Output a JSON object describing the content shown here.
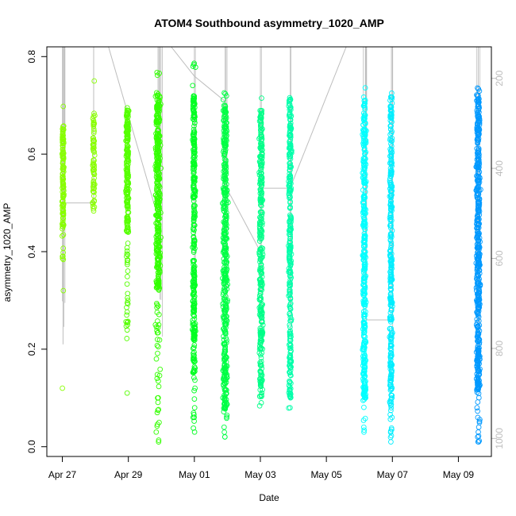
{
  "chart_data": {
    "type": "scatter",
    "title": "ATOM4 Southbound asymmetry_1020_AMP",
    "xlabel": "Date",
    "ylabel": "asymmetry_1020_AMP",
    "x_ticks": [
      "Apr 27",
      "Apr 29",
      "May 01",
      "May 03",
      "May 05",
      "May 07",
      "May 09"
    ],
    "x_tick_days": [
      0,
      2,
      4,
      6,
      8,
      10,
      12
    ],
    "xlim_days": [
      -0.47,
      13.0
    ],
    "y_ticks": [
      "0.0",
      "0.2",
      "0.4",
      "0.6",
      "0.8"
    ],
    "ylim": [
      -0.02,
      0.82
    ],
    "right_axis": {
      "ticks": [
        "200",
        "400",
        "600",
        "800",
        "1000"
      ],
      "ylim": [
        1040,
        130
      ],
      "color": "#bdbdbd"
    },
    "grid": false,
    "marker": "open-circle",
    "series": [
      {
        "day": 0.02,
        "spread": 0.04,
        "min": 0.38,
        "max": 0.71,
        "core_min": 0.45,
        "core_max": 0.66,
        "n": 140,
        "color": "#88ff00",
        "outliers": [
          0.12,
          0.32,
          0.39
        ]
      },
      {
        "day": 0.95,
        "spread": 0.05,
        "min": 0.48,
        "max": 0.7,
        "core_min": 0.49,
        "core_max": 0.68,
        "n": 70,
        "color": "#88ff00",
        "outliers": [
          0.75
        ]
      },
      {
        "day": 1.97,
        "spread": 0.06,
        "min": 0.22,
        "max": 0.7,
        "core_min": 0.44,
        "core_max": 0.69,
        "n": 230,
        "color": "#55ff00",
        "outliers": [
          0.11,
          0.25,
          0.27,
          0.3
        ]
      },
      {
        "day": 2.9,
        "spread": 0.11,
        "min": 0.01,
        "max": 0.77,
        "core_min": 0.32,
        "core_max": 0.72,
        "n": 380,
        "color": "#33ff00",
        "outliers": [
          0.01,
          0.03,
          0.07,
          0.1,
          0.14,
          0.18,
          0.22,
          0.25
        ]
      },
      {
        "day": 3.99,
        "spread": 0.06,
        "min": 0.03,
        "max": 0.79,
        "core_min": 0.15,
        "core_max": 0.72,
        "n": 330,
        "color": "#00ff22",
        "outliers": [
          0.03,
          0.06,
          0.08,
          0.12
        ]
      },
      {
        "day": 4.93,
        "spread": 0.11,
        "min": 0.02,
        "max": 0.73,
        "core_min": 0.07,
        "core_max": 0.7,
        "n": 420,
        "color": "#00ff44",
        "outliers": [
          0.02,
          0.04
        ]
      },
      {
        "day": 6.02,
        "spread": 0.08,
        "min": 0.08,
        "max": 0.72,
        "core_min": 0.1,
        "core_max": 0.7,
        "n": 320,
        "color": "#00ff88",
        "outliers": [
          0.09
        ]
      },
      {
        "day": 6.9,
        "spread": 0.06,
        "min": 0.07,
        "max": 0.74,
        "core_min": 0.1,
        "core_max": 0.72,
        "n": 300,
        "color": "#00ffaa",
        "outliers": [
          0.08
        ]
      },
      {
        "day": 9.15,
        "spread": 0.08,
        "min": 0.03,
        "max": 0.74,
        "core_min": 0.09,
        "core_max": 0.71,
        "n": 360,
        "color": "#00ffff",
        "outliers": [
          0.03,
          0.04
        ]
      },
      {
        "day": 9.96,
        "spread": 0.06,
        "min": 0.01,
        "max": 0.74,
        "core_min": 0.08,
        "core_max": 0.72,
        "n": 320,
        "color": "#00eeff",
        "outliers": [
          0.01,
          0.06
        ]
      },
      {
        "day": 12.6,
        "spread": 0.09,
        "min": 0.01,
        "max": 0.74,
        "core_min": 0.11,
        "core_max": 0.72,
        "n": 460,
        "color": "#0099ff",
        "outliers": [
          0.01,
          0.03,
          0.04,
          0.06,
          0.08
        ]
      }
    ],
    "depth_trace": {
      "color": "#bdbdbd",
      "vertical_days": [
        0.0,
        0.05,
        0.08,
        2.93,
        2.96,
        2.99,
        3.03,
        4.0,
        4.03,
        4.93,
        4.96,
        4.99,
        6.0,
        6.03,
        6.9,
        6.93,
        9.12,
        9.18,
        9.22,
        9.97,
        10.01,
        12.55,
        12.6,
        12.65
      ],
      "path": [
        [
          0.02,
          0.21
        ],
        [
          0.02,
          0.82
        ],
        [
          0.06,
          0.82
        ],
        [
          0.06,
          0.5
        ],
        [
          0.95,
          0.5
        ],
        [
          0.95,
          0.82
        ],
        [
          1.4,
          0.82
        ],
        [
          2.9,
          0.47
        ],
        [
          2.9,
          0.82
        ],
        [
          3.3,
          0.82
        ],
        [
          4.0,
          0.76
        ],
        [
          4.9,
          0.71
        ],
        [
          4.9,
          0.54
        ],
        [
          6.0,
          0.4
        ],
        [
          6.0,
          0.53
        ],
        [
          6.9,
          0.53
        ],
        [
          8.6,
          0.82
        ],
        [
          9.2,
          0.82
        ],
        [
          9.2,
          0.26
        ],
        [
          10.0,
          0.26
        ],
        [
          10.0,
          0.82
        ],
        [
          12.6,
          0.82
        ],
        [
          12.6,
          0.15
        ]
      ]
    }
  }
}
